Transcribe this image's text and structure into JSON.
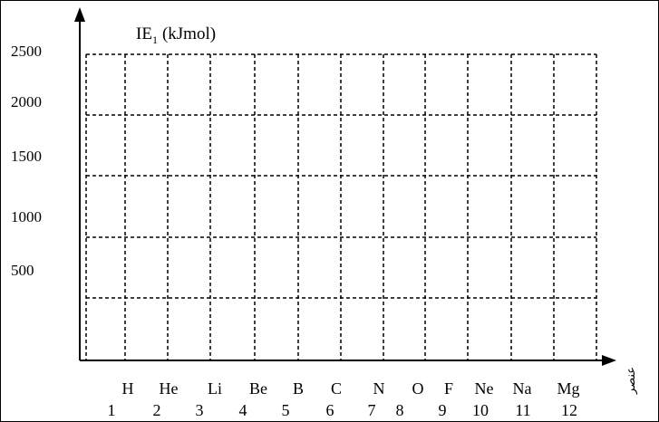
{
  "chart_data": {
    "type": "line",
    "title": "",
    "ylabel_main": "IE",
    "ylabel_sub": "1",
    "ylabel_unit": "(kJmol)",
    "xlabel": "عنصر",
    "yticks": [
      "2500",
      "2000",
      "1500",
      "1000",
      "500"
    ],
    "elements": [
      "H",
      "He",
      "Li",
      "Be",
      "B",
      "C",
      "N",
      "O",
      "F",
      "Ne",
      "Na",
      "Mg"
    ],
    "numbers": [
      "1",
      "2",
      "3",
      "4",
      "5",
      "6",
      "7",
      "8",
      "9",
      "10",
      "11",
      "12"
    ],
    "series": [],
    "grid": true,
    "grid_style": "dashed"
  }
}
